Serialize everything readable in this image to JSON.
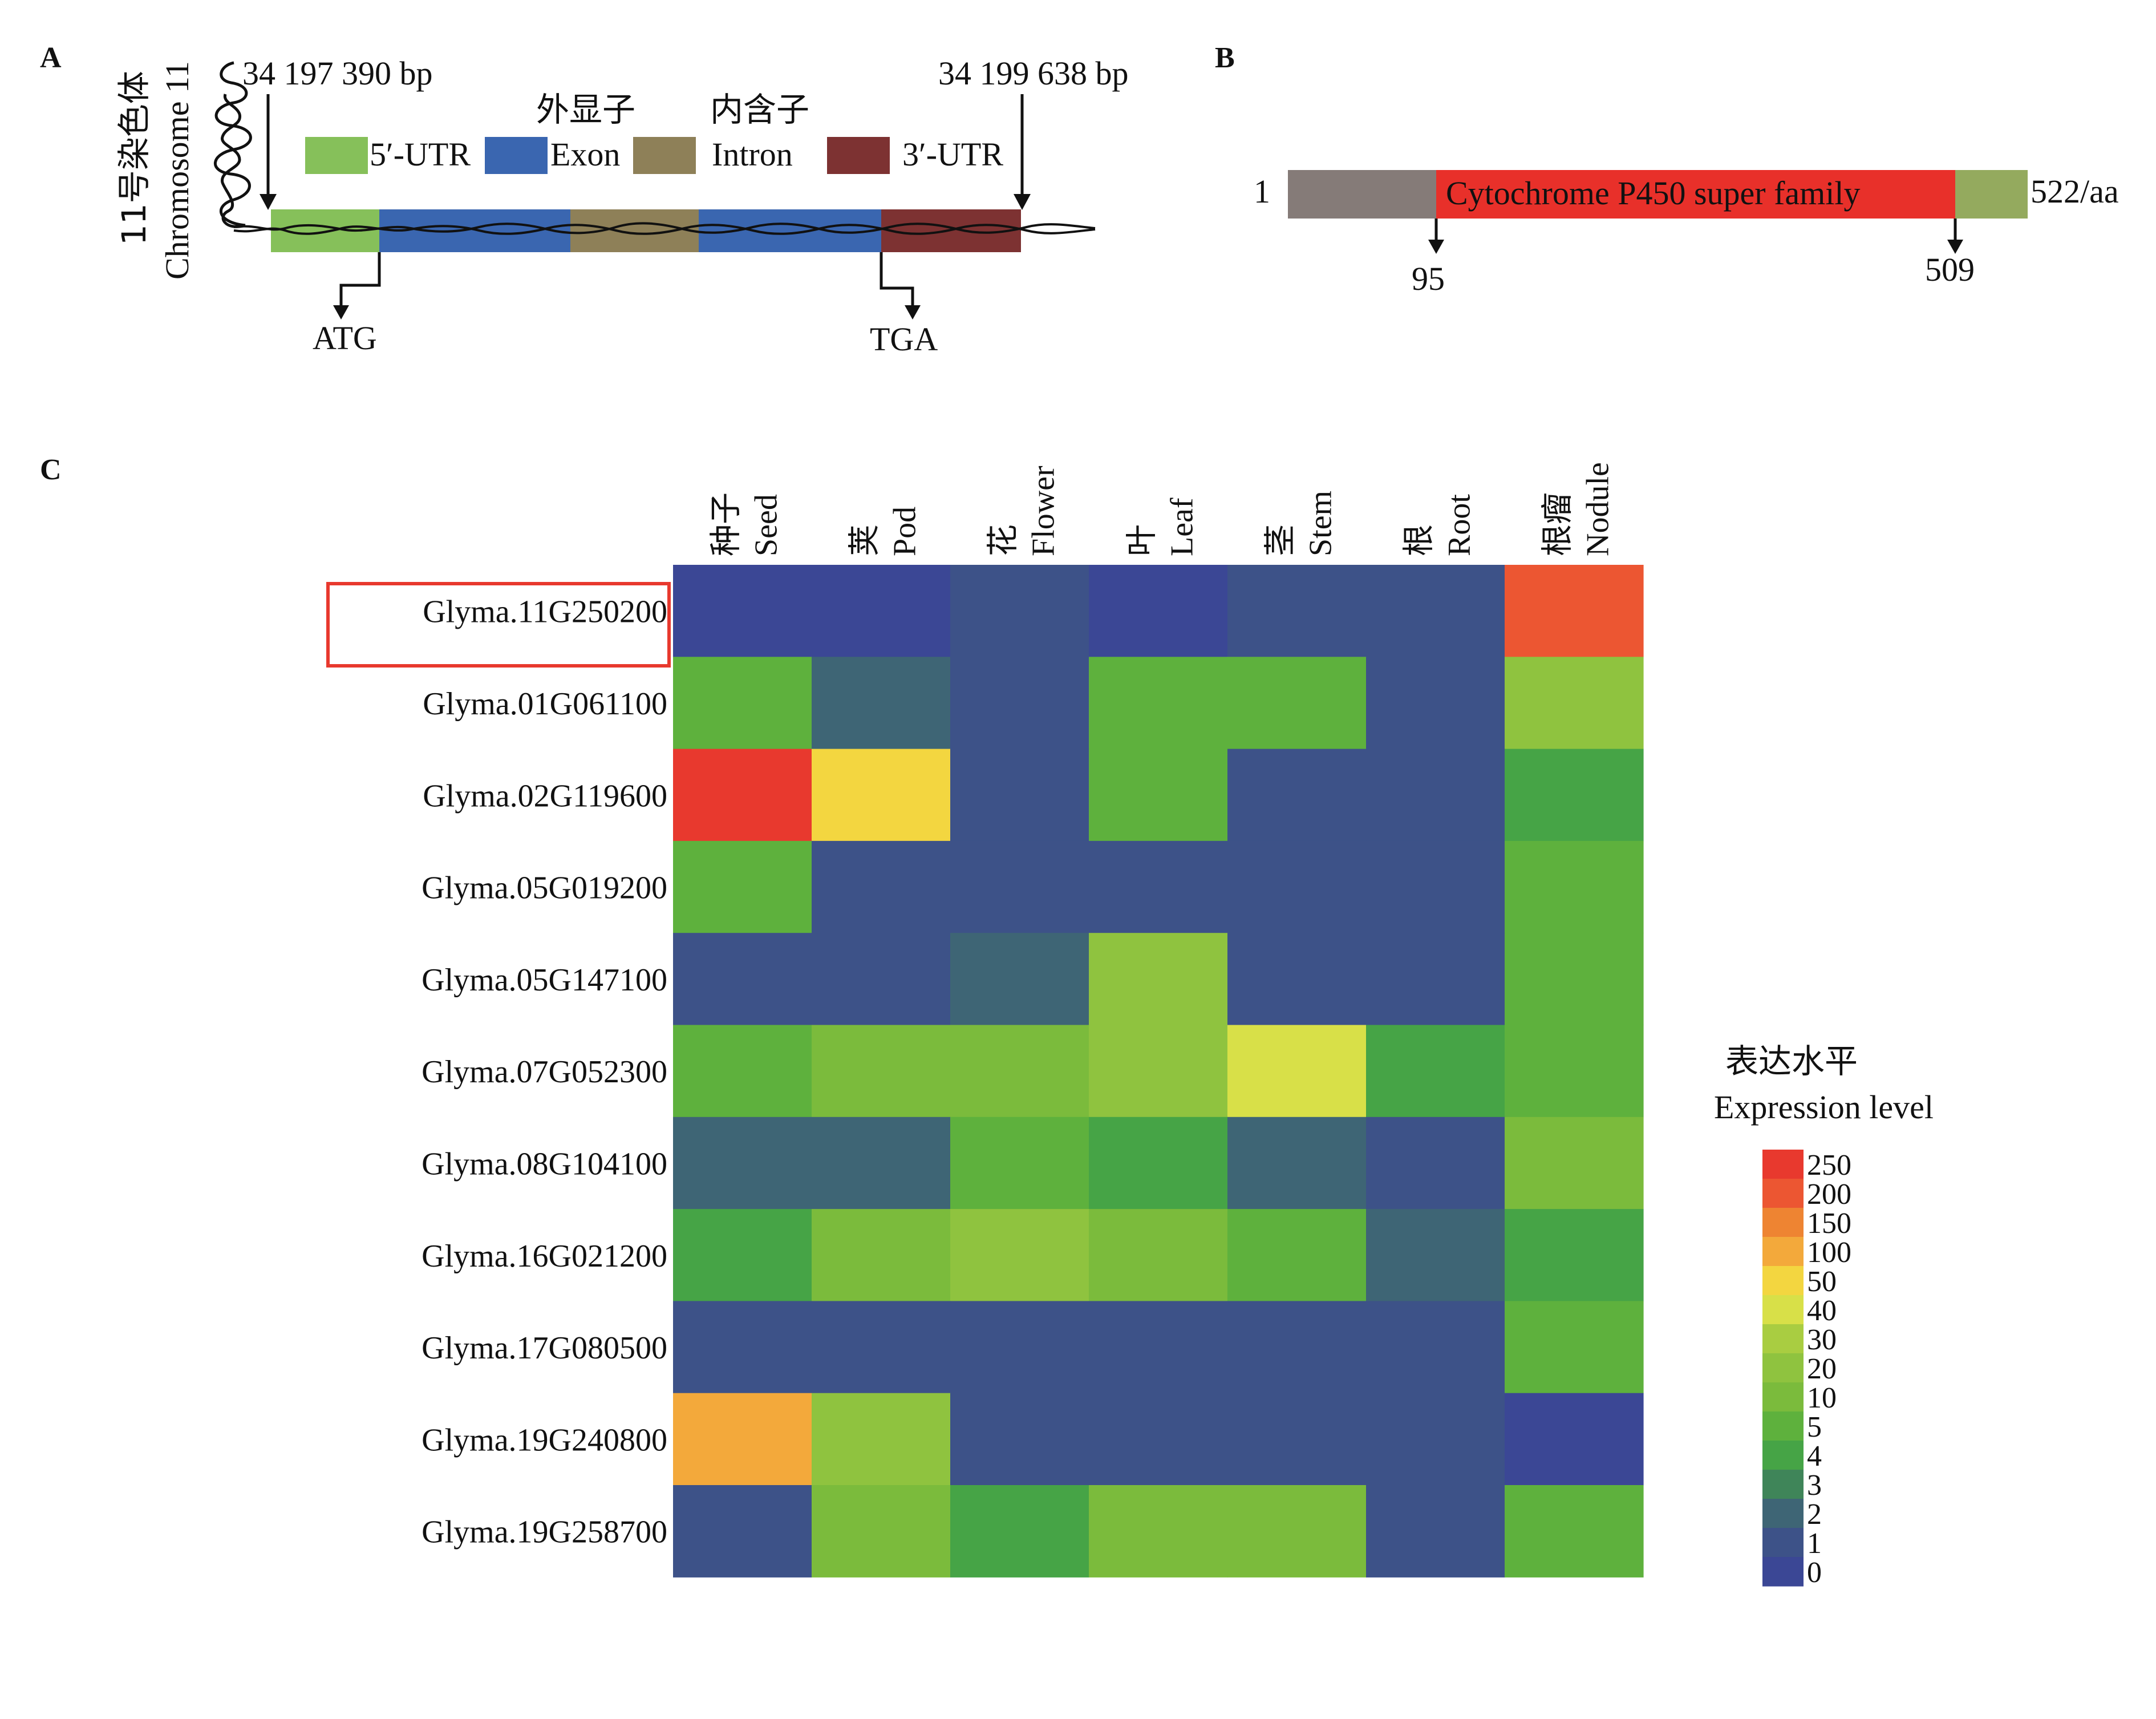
{
  "panel_a": {
    "letter": "A",
    "chromosome_cn": "11号染色体",
    "chromosome_en": "Chromosome 11",
    "start_pos": "34 197 390 bp",
    "end_pos": "34 199 638 bp",
    "legend": [
      {
        "cn": "",
        "en": "5′-UTR",
        "color": "#86c05a"
      },
      {
        "cn": "外显子",
        "en": "Exon",
        "color": "#3a66b0"
      },
      {
        "cn": "内含子",
        "en": "Intron",
        "color": "#8e8058"
      },
      {
        "cn": "",
        "en": "3′-UTR",
        "color": "#7d3232"
      }
    ],
    "segments": [
      "5′-UTR",
      "Exon",
      "Intron",
      "Exon",
      "3′-UTR"
    ],
    "start_codon": "ATG",
    "stop_codon": "TGA"
  },
  "panel_b": {
    "letter": "B",
    "start": "1",
    "end": "522/aa",
    "domain_label": "Cytochrome P450 super family",
    "domain_start": "95",
    "domain_end": "509",
    "colors": {
      "head": "#857b78",
      "domain": "#e8302a",
      "tail": "#94aa5e"
    }
  },
  "panel_c": {
    "letter": "C",
    "highlighted_gene": "Glyma.11G250200",
    "legend_title_cn": "表达水平",
    "legend_title_en": "Expression level"
  },
  "chart_data": {
    "type": "heatmap",
    "columns": [
      {
        "cn": "种子",
        "en": "Seed"
      },
      {
        "cn": "荚",
        "en": "Pod"
      },
      {
        "cn": "花",
        "en": "Flower"
      },
      {
        "cn": "叶",
        "en": "Leaf"
      },
      {
        "cn": "茎",
        "en": "Stem"
      },
      {
        "cn": "根",
        "en": "Root"
      },
      {
        "cn": "根瘤",
        "en": "Nodule"
      }
    ],
    "rows": [
      "Glyma.11G250200",
      "Glyma.01G061100",
      "Glyma.02G119600",
      "Glyma.05G019200",
      "Glyma.05G147100",
      "Glyma.07G052300",
      "Glyma.08G104100",
      "Glyma.16G021200",
      "Glyma.17G080500",
      "Glyma.19G240800",
      "Glyma.19G258700"
    ],
    "values": [
      [
        0.5,
        0.5,
        1,
        0.5,
        1,
        1,
        200
      ],
      [
        5,
        2,
        1,
        5,
        5,
        1,
        20
      ],
      [
        250,
        50,
        1,
        5,
        1,
        1,
        4
      ],
      [
        5,
        1,
        1,
        1,
        1,
        1,
        5
      ],
      [
        1,
        1,
        2,
        20,
        1,
        1,
        5
      ],
      [
        5,
        10,
        10,
        20,
        40,
        4,
        5
      ],
      [
        2,
        2,
        5,
        4,
        2,
        1,
        10
      ],
      [
        4,
        10,
        20,
        10,
        5,
        2,
        4
      ],
      [
        1,
        1,
        1,
        1,
        1,
        1,
        5
      ],
      [
        100,
        20,
        1,
        1,
        1,
        1,
        0
      ],
      [
        1,
        10,
        4,
        10,
        10,
        1,
        5
      ]
    ],
    "scale_ticks": [
      "250",
      "200",
      "150",
      "100",
      "50",
      "40",
      "30",
      "20",
      "10",
      "5",
      "4",
      "3",
      "2",
      "1",
      "0"
    ],
    "scale_colors": [
      "#e8392e",
      "#ec5632",
      "#ee8432",
      "#f3a93b",
      "#f3d640",
      "#d8e048",
      "#a9cd41",
      "#8fc33f",
      "#7bbb3c",
      "#5eb13d",
      "#46a446",
      "#3f8559",
      "#3e6575",
      "#3d5288",
      "#3b4795"
    ]
  }
}
